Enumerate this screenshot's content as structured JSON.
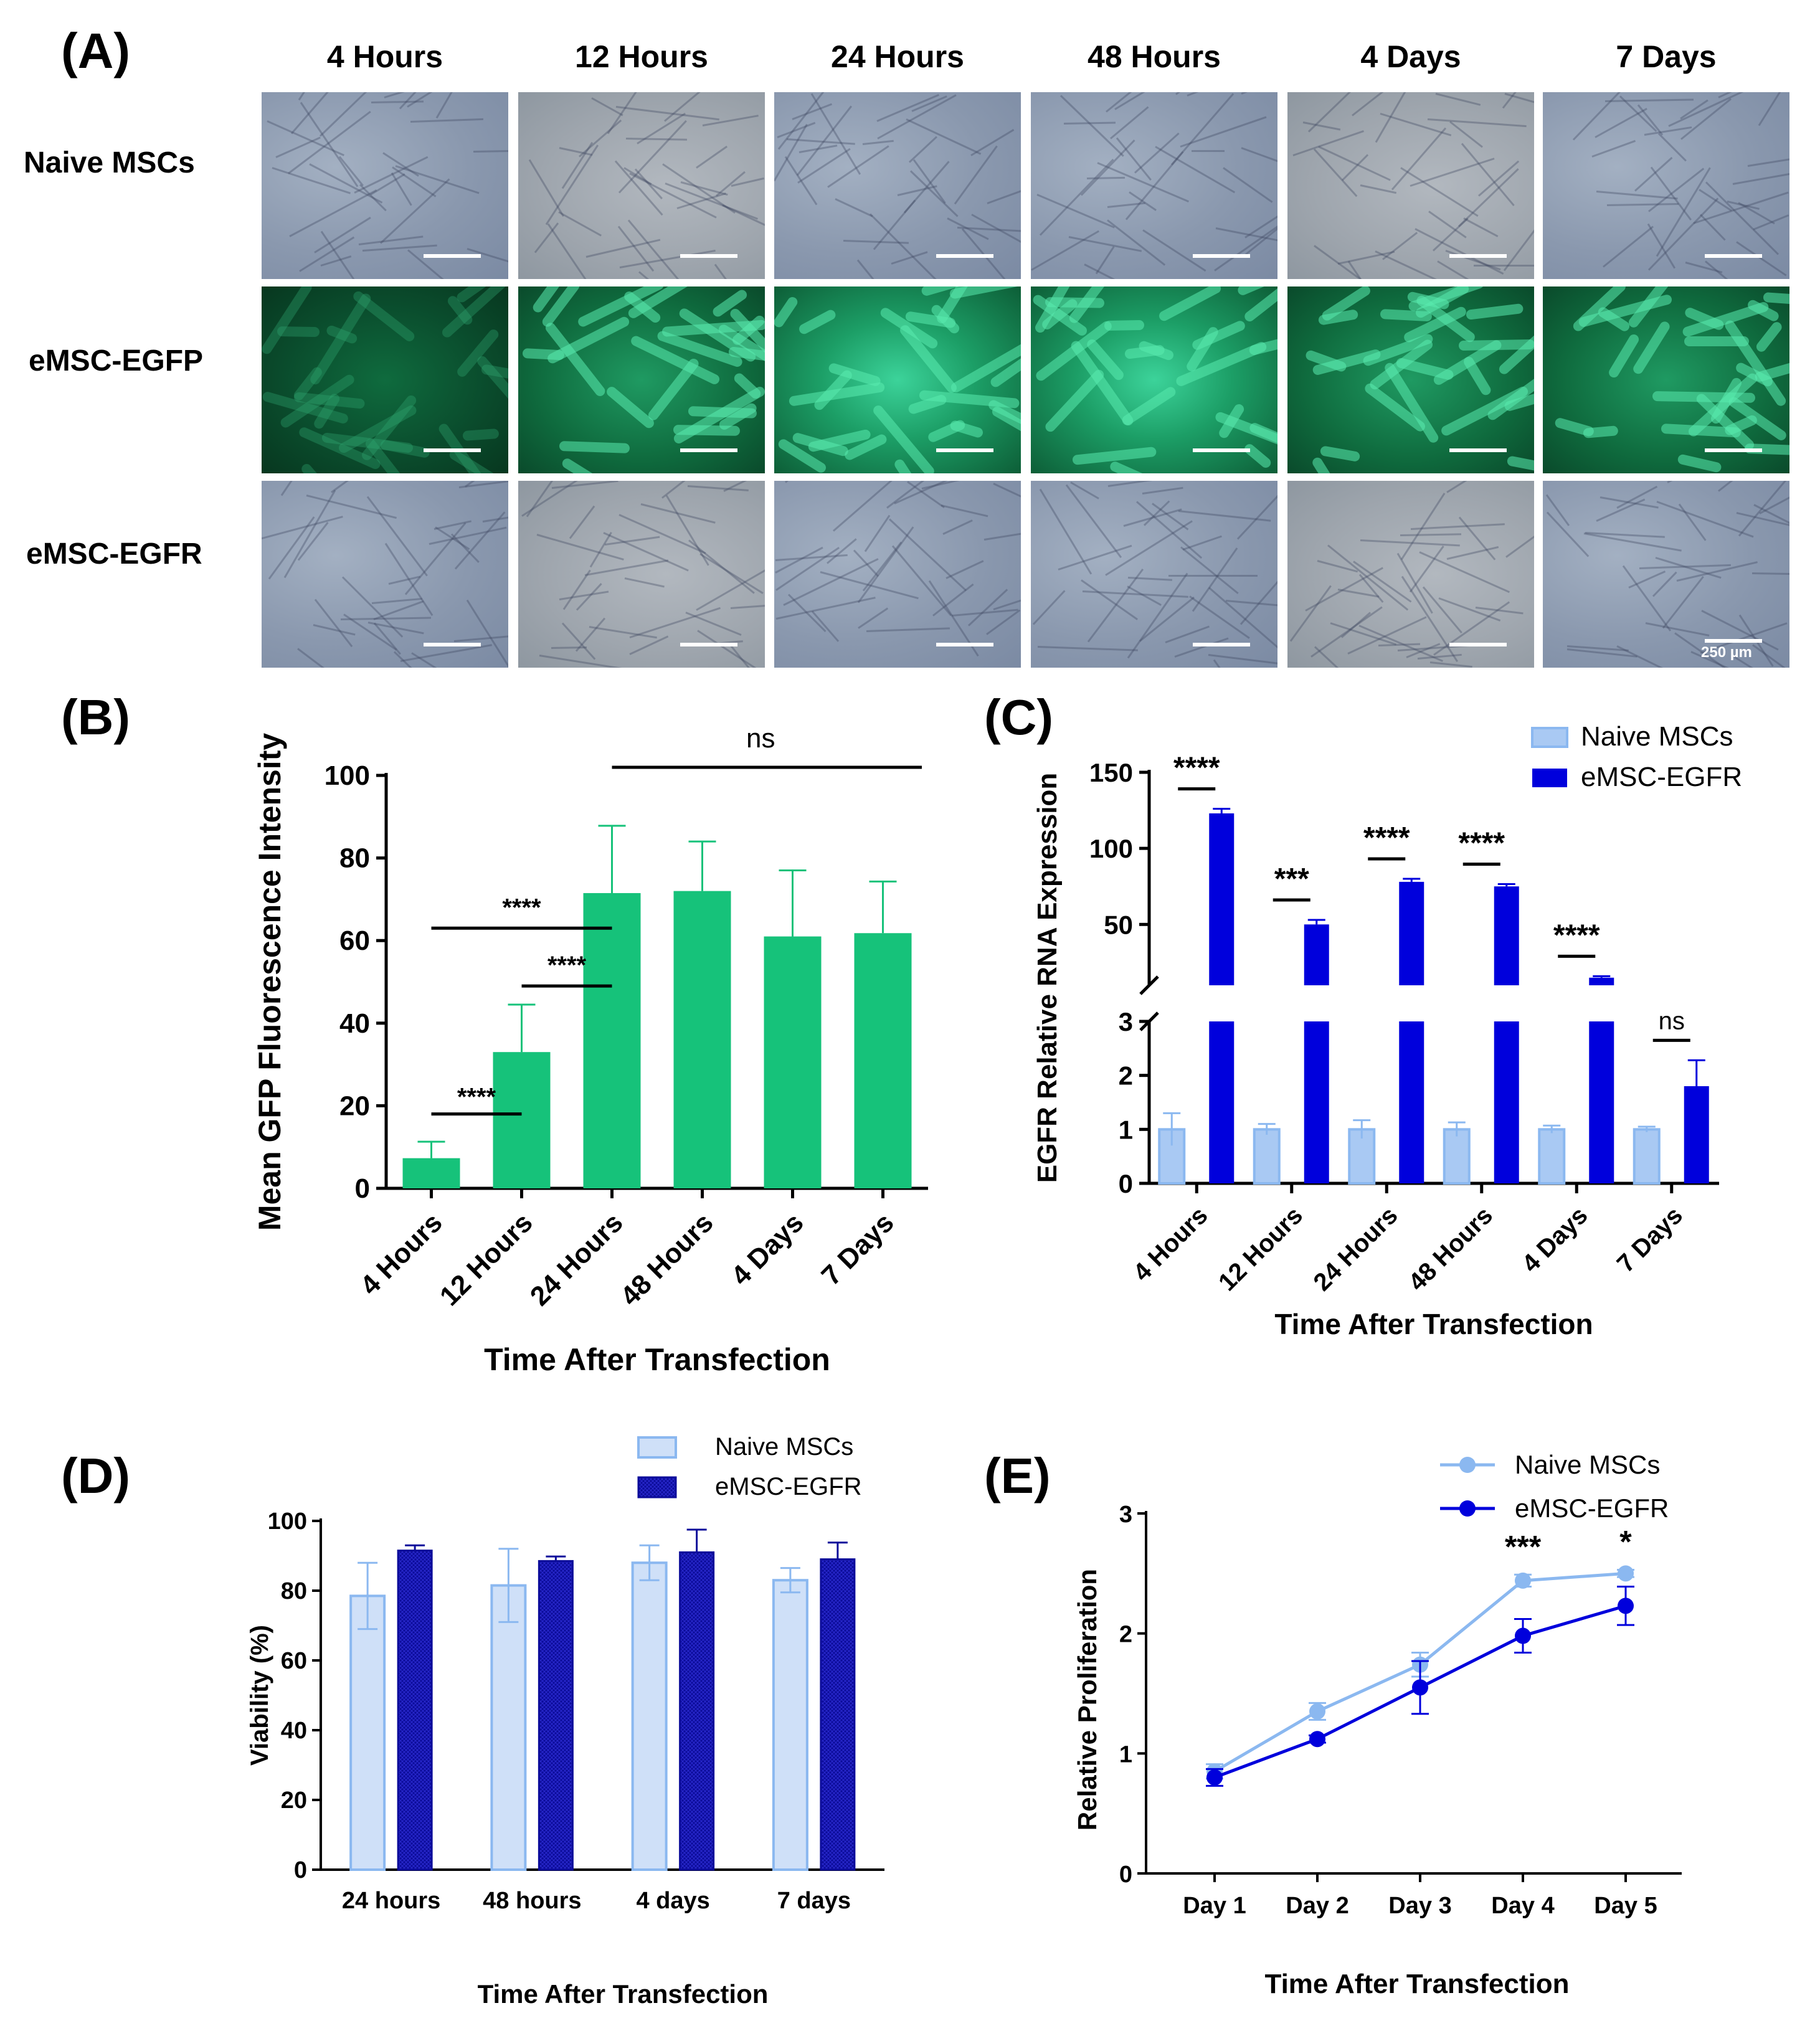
{
  "panel_labels": {
    "A": "(A)",
    "B": "(B)",
    "C": "(C)",
    "D": "(D)",
    "E": "(E)"
  },
  "panel_a": {
    "columns": [
      "4 Hours",
      "12 Hours",
      "24 Hours",
      "48 Hours",
      "4 Days",
      "7 Days"
    ],
    "rows": [
      "Naive MSCs",
      "eMSC-EGFP",
      "eMSC-EGFR"
    ],
    "scale_label": "250 µm"
  },
  "colors": {
    "green": "#16c27a",
    "light_blue": "#a9c9f3",
    "light_blue_edge": "#8bb8f0",
    "dark_blue": "#0000dc",
    "navy": "#0c0c9a"
  },
  "chart_data": [
    {
      "panel": "B",
      "type": "bar",
      "categories": [
        "4 Hours",
        "12 Hours",
        "24 Hours",
        "48 Hours",
        "4 Days",
        "7 Days"
      ],
      "values": [
        7.3,
        33,
        71.5,
        72,
        61,
        61.8
      ],
      "errors": [
        4,
        11.5,
        16.3,
        12,
        16,
        12.5
      ],
      "xlabel": "Time After Transfection",
      "ylabel": "Mean GFP Fluorescence Intensity",
      "ylim": [
        0,
        100
      ],
      "yticks": [
        0,
        20,
        40,
        60,
        80,
        100
      ],
      "annotations": [
        {
          "text": "****",
          "from": 0,
          "to": 1
        },
        {
          "text": "****",
          "from": 0,
          "to": 2
        },
        {
          "text": "****",
          "from": 1,
          "to": 2
        },
        {
          "text": "ns",
          "from": 2,
          "to": 5
        }
      ]
    },
    {
      "panel": "C",
      "type": "bar",
      "categories": [
        "4 Hours",
        "12 Hours",
        "24 Hours",
        "48 Hours",
        "4 Days",
        "7 Days"
      ],
      "series": [
        {
          "name": "Naive MSCs",
          "values": [
            1.0,
            1.0,
            1.0,
            1.0,
            1.0,
            1.0
          ],
          "errors": [
            0.3,
            0.1,
            0.17,
            0.13,
            0.07,
            0.05
          ]
        },
        {
          "name": "eMSC-EGFR",
          "values": [
            123,
            50,
            78,
            75,
            15,
            1.8
          ],
          "errors": [
            3,
            3,
            2,
            1.5,
            1,
            0.48
          ]
        }
      ],
      "xlabel": "Time After Transfection",
      "ylabel": "EGFR Relative RNA Expression",
      "axis_break": {
        "lower": [
          0,
          3
        ],
        "upper": [
          10,
          150
        ]
      },
      "yticks_lower": [
        0,
        1,
        2,
        3
      ],
      "yticks_upper": [
        50,
        100,
        150
      ],
      "annotations": [
        "****",
        "***",
        "****",
        "****",
        "****",
        "ns"
      ]
    },
    {
      "panel": "D",
      "type": "bar",
      "categories": [
        "24 hours",
        "48 hours",
        "4 days",
        "7 days"
      ],
      "series": [
        {
          "name": "Naive MSCs",
          "values": [
            78.5,
            81.5,
            88,
            83
          ],
          "errors": [
            9.5,
            10.5,
            5,
            3.5
          ]
        },
        {
          "name": "eMSC-EGFR",
          "values": [
            91.5,
            88.5,
            91,
            89
          ],
          "errors": [
            1.5,
            1.3,
            6.5,
            4.8
          ]
        }
      ],
      "xlabel": "Time After Transfection",
      "ylabel": "Viability (%)",
      "ylim": [
        0,
        100
      ],
      "yticks": [
        0,
        20,
        40,
        60,
        80,
        100
      ]
    },
    {
      "panel": "E",
      "type": "line",
      "x": [
        "Day 1",
        "Day 2",
        "Day 3",
        "Day 4",
        "Day 5"
      ],
      "series": [
        {
          "name": "Naive MSCs",
          "values": [
            0.85,
            1.35,
            1.74,
            2.44,
            2.5
          ],
          "errors": [
            0.06,
            0.07,
            0.1,
            0.05,
            0.03
          ]
        },
        {
          "name": "eMSC-EGFR",
          "values": [
            0.8,
            1.12,
            1.55,
            1.98,
            2.23
          ],
          "errors": [
            0.07,
            0.03,
            0.22,
            0.14,
            0.16
          ]
        }
      ],
      "xlabel": "Time After Transfection",
      "ylabel": "Relative Proliferation",
      "ylim": [
        0,
        3
      ],
      "yticks": [
        0,
        1,
        2,
        3
      ],
      "annotations": [
        "",
        "",
        "",
        "***",
        "*"
      ]
    }
  ]
}
